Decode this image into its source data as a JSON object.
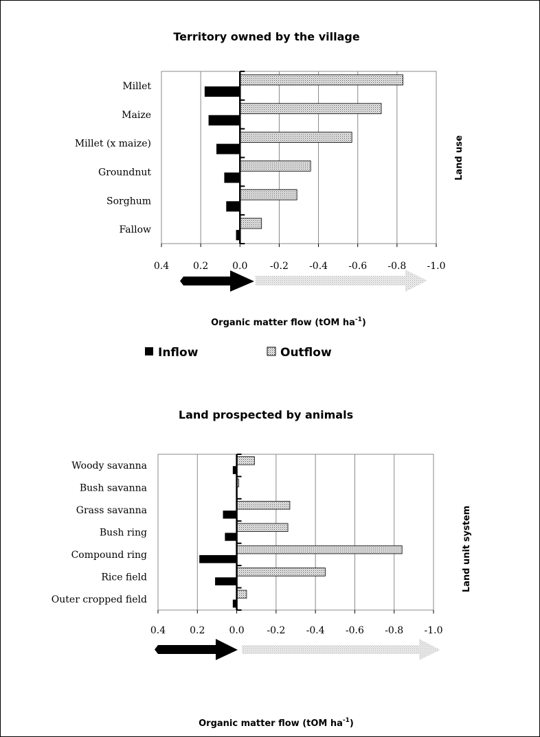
{
  "legend": [
    {
      "name": "Inflow",
      "color": "#000000",
      "pattern": "solid"
    },
    {
      "name": "Outflow",
      "color": "#c8c8c8",
      "pattern": "dotted"
    }
  ],
  "chart_data": [
    {
      "type": "bar",
      "orientation": "horizontal",
      "title": "Territory owned by the village",
      "xlabel": "Organic matter flow (tOM  ha",
      "xlabel_sup": "-1",
      "xlabel_suffix": ")",
      "ylabel": "Land use",
      "xlim": [
        0.4,
        -1.0
      ],
      "xticks": [
        "0.4",
        "0.2",
        "0.0",
        "-0.2",
        "-0.4",
        "-0.6",
        "-0.8",
        "-1.0"
      ],
      "categories": [
        "Millet",
        "Maize",
        "Millet (x maize)",
        "Groundnut",
        "Sorghum",
        "Fallow"
      ],
      "series": [
        {
          "name": "Inflow",
          "values": [
            0.18,
            0.16,
            0.12,
            0.08,
            0.07,
            0.02
          ]
        },
        {
          "name": "Outflow",
          "values": [
            -0.83,
            -0.72,
            -0.57,
            -0.36,
            -0.29,
            -0.11
          ]
        }
      ],
      "grid": true,
      "legend_position": "bottom"
    },
    {
      "type": "bar",
      "orientation": "horizontal",
      "title": "Land prospected by animals",
      "xlabel": "Organic matter flow (tOM  ha",
      "xlabel_sup": "-1",
      "xlabel_suffix": ")",
      "ylabel": "Land unit system",
      "xlim": [
        0.4,
        -1.0
      ],
      "xticks": [
        "0.4",
        "0.2",
        "0.0",
        "-0.2",
        "-0.4",
        "-0.6",
        "-0.8",
        "-1.0"
      ],
      "categories": [
        "Woody savanna",
        "Bush savanna",
        "Grass savanna",
        "Bush ring",
        "Compound ring",
        "Rice field",
        "Outer cropped field"
      ],
      "series": [
        {
          "name": "Inflow",
          "values": [
            0.02,
            0.003,
            0.07,
            0.06,
            0.19,
            0.11,
            0.02
          ]
        },
        {
          "name": "Outflow",
          "values": [
            -0.09,
            -0.01,
            -0.27,
            -0.26,
            -0.84,
            -0.45,
            -0.05
          ]
        }
      ],
      "grid": true
    }
  ]
}
